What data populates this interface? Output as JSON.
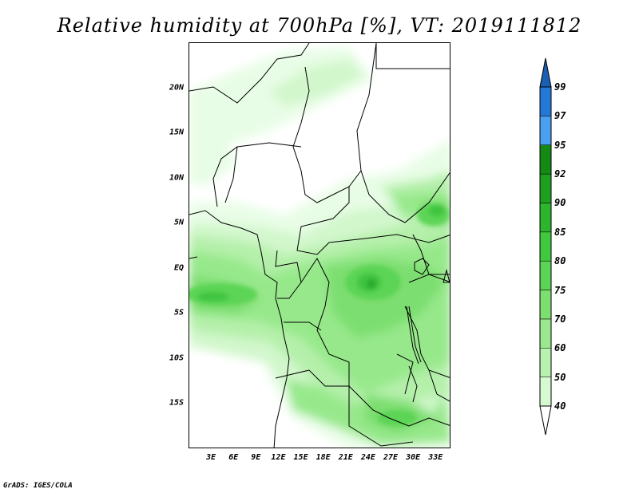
{
  "title": "Relative humidity at 700hPa [%], VT: 2019111812",
  "credit": "GrADS: IGES/COLA",
  "map": {
    "lon_range": [
      0,
      35
    ],
    "lat_range": [
      -20,
      25
    ],
    "lat_ticks": [
      {
        "value": 20,
        "label": "20N"
      },
      {
        "value": 15,
        "label": "15N"
      },
      {
        "value": 10,
        "label": "10N"
      },
      {
        "value": 5,
        "label": "5N"
      },
      {
        "value": 0,
        "label": "EQ"
      },
      {
        "value": -5,
        "label": "5S"
      },
      {
        "value": -10,
        "label": "10S"
      },
      {
        "value": -15,
        "label": "15S"
      }
    ],
    "lon_ticks": [
      {
        "value": 3,
        "label": "3E"
      },
      {
        "value": 6,
        "label": "6E"
      },
      {
        "value": 9,
        "label": "9E"
      },
      {
        "value": 12,
        "label": "12E"
      },
      {
        "value": 15,
        "label": "15E"
      },
      {
        "value": 18,
        "label": "18E"
      },
      {
        "value": 21,
        "label": "21E"
      },
      {
        "value": 24,
        "label": "24E"
      },
      {
        "value": 27,
        "label": "27E"
      },
      {
        "value": 30,
        "label": "30E"
      },
      {
        "value": 33,
        "label": "33E"
      }
    ]
  },
  "colorbar": {
    "levels": [
      "40",
      "50",
      "60",
      "70",
      "75",
      "80",
      "85",
      "90",
      "92",
      "95",
      "97",
      "99"
    ],
    "colors": [
      "#f0fff0",
      "#d7f9d2",
      "#b8f2b0",
      "#9ae98e",
      "#7ddf70",
      "#5cd455",
      "#40c83f",
      "#2eb52e",
      "#1e9f1e",
      "#148a14",
      "#4aa0ee",
      "#2478d6",
      "#1a5fb4"
    ],
    "under_color": "#ffffff"
  }
}
